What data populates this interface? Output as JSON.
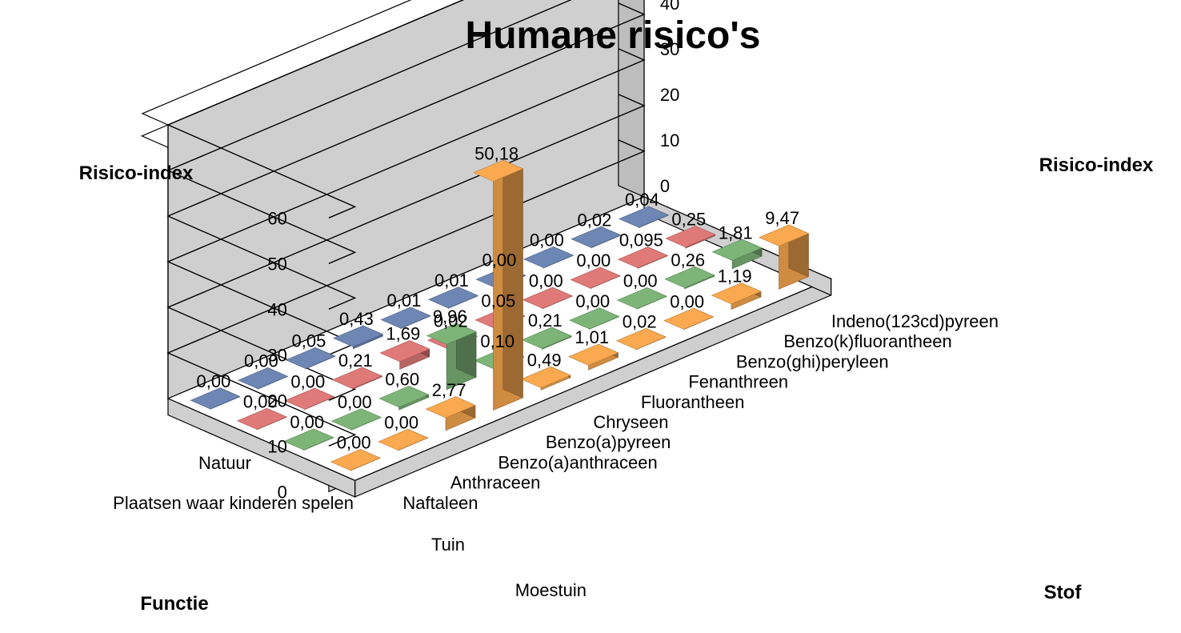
{
  "chart_data": {
    "type": "bar3d",
    "title": "Humane risico's",
    "zlabel_left": "Risico-index",
    "zlabel_right": "Risico-index",
    "xlabel": "Stof",
    "ylabel": "Functie",
    "zlim": [
      0,
      60
    ],
    "z_ticks": [
      "0",
      "10",
      "20",
      "30",
      "40",
      "50",
      "60"
    ],
    "categories": [
      "Naftaleen",
      "Anthraceen",
      "Benzo(a)anthraceen",
      "Benzo(a)pyreen",
      "Chryseen",
      "Fluorantheen",
      "Fenanthreen",
      "Benzo(ghi)peryleen",
      "Benzo(k)fluorantheen",
      "Indeno(123cd)pyreen"
    ],
    "series": [
      {
        "name": "Natuur",
        "color": "#6d86b4",
        "values": [
          0.0,
          0.0,
          0.05,
          0.43,
          0.01,
          0.01,
          0.0,
          0.0,
          0.02,
          0.04
        ],
        "labels": [
          "0,00",
          "0,00",
          "0,05",
          "0,43",
          "0,01",
          "0,01",
          "0,00",
          "0,00",
          "0,02",
          "0,04"
        ]
      },
      {
        "name": "Plaatsen waar kinderen spelen",
        "color": "#e07a78",
        "values": [
          0.0,
          0.0,
          0.21,
          1.69,
          0.02,
          0.05,
          0.0,
          0.0,
          0.095,
          0.25
        ],
        "labels": [
          "0,00",
          "0,00",
          "0,21",
          "1,69",
          "0,02",
          "0,05",
          "0,00",
          "0,00",
          "0,095",
          "0,25"
        ]
      },
      {
        "name": "Tuin",
        "color": "#7db578",
        "values": [
          0.0,
          0.0,
          0.6,
          9.96,
          0.1,
          0.21,
          0.0,
          0.0,
          0.26,
          1.81
        ],
        "labels": [
          "0,00",
          "0,00",
          "0,60",
          "9,96",
          "0,10",
          "0,21",
          "0,00",
          "0,00",
          "0,26",
          "1,81"
        ]
      },
      {
        "name": "Moestuin",
        "color": "#fba950",
        "values": [
          0.0,
          0.0,
          2.77,
          50.18,
          0.49,
          1.01,
          0.02,
          0.0,
          1.19,
          9.47
        ],
        "labels": [
          "0,00",
          "0,00",
          "2,77",
          "50,18",
          "0,49",
          "1,01",
          "0,02",
          "0,00",
          "1,19",
          "9,47"
        ]
      }
    ],
    "grid": true
  }
}
